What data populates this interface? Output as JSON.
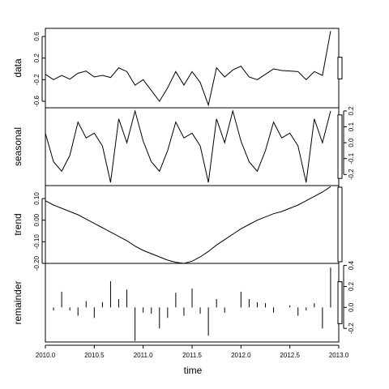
{
  "chart_data": {
    "type": "line",
    "xlabel": "time",
    "x_ticks": [
      2010.0,
      2010.5,
      2011.0,
      2011.5,
      2012.0,
      2012.5,
      2013.0
    ],
    "x_tick_labels": [
      "2010.0",
      "2010.5",
      "2011.0",
      "2011.5",
      "2012.0",
      "2012.5",
      "2013.0"
    ],
    "xlim": [
      2010.0,
      2013.0
    ],
    "time": [
      2010.0,
      2010.0833,
      2010.1667,
      2010.25,
      2010.3333,
      2010.4167,
      2010.5,
      2010.5833,
      2010.6667,
      2010.75,
      2010.8333,
      2010.9167,
      2011.0,
      2011.0833,
      2011.1667,
      2011.25,
      2011.3333,
      2011.4167,
      2011.5,
      2011.5833,
      2011.6667,
      2011.75,
      2011.8333,
      2011.9167,
      2012.0,
      2012.0833,
      2012.1667,
      2012.25,
      2012.3333,
      2012.4167,
      2012.5,
      2012.5833,
      2012.6667,
      2012.75,
      2012.8333,
      2012.9167
    ],
    "panels": [
      {
        "name": "data",
        "ylabel": "data",
        "ylim": [
          -0.72,
          0.75
        ],
        "y_ticks": [
          -0.6,
          -0.2,
          0.2,
          0.6
        ],
        "y_tick_labels": [
          "-0.6",
          "-0.2",
          "0.2",
          "0.6"
        ],
        "style": "line",
        "values": [
          -0.1,
          -0.2,
          -0.12,
          -0.19,
          -0.08,
          -0.04,
          -0.15,
          -0.12,
          -0.16,
          0.02,
          -0.05,
          -0.3,
          -0.2,
          -0.4,
          -0.6,
          -0.35,
          -0.05,
          -0.3,
          -0.05,
          -0.25,
          -0.67,
          0.02,
          -0.15,
          -0.02,
          0.05,
          -0.15,
          -0.2,
          -0.1,
          0.0,
          -0.03,
          -0.04,
          -0.05,
          -0.2,
          -0.05,
          -0.12,
          0.7
        ]
      },
      {
        "name": "seasonal",
        "ylabel": "seasonal",
        "ylim": [
          -0.27,
          0.22
        ],
        "y_ticks": [
          -0.2,
          -0.1,
          0.0,
          0.1,
          0.2
        ],
        "y_tick_labels": [
          "-0.2",
          "-0.1",
          "0.0",
          "0.1",
          "0.2"
        ],
        "style": "line",
        "values": [
          0.06,
          -0.12,
          -0.18,
          -0.08,
          0.13,
          0.03,
          0.06,
          -0.02,
          -0.25,
          0.15,
          0.0,
          0.2,
          0.01,
          -0.12,
          -0.18,
          -0.05,
          0.13,
          0.03,
          0.06,
          -0.02,
          -0.25,
          0.15,
          0.0,
          0.2,
          0.01,
          -0.12,
          -0.18,
          -0.05,
          0.13,
          0.03,
          0.06,
          -0.02,
          -0.25,
          0.15,
          0.0,
          0.2
        ]
      },
      {
        "name": "trend",
        "ylabel": "trend",
        "ylim": [
          -0.2,
          0.16
        ],
        "y_ticks": [
          -0.2,
          -0.1,
          0.0,
          0.1
        ],
        "y_tick_labels": [
          "-0.20",
          "-0.10",
          "0.00",
          "0.10"
        ],
        "style": "line",
        "values": [
          0.09,
          0.07,
          0.055,
          0.04,
          0.025,
          0.005,
          -0.015,
          -0.035,
          -0.055,
          -0.075,
          -0.095,
          -0.12,
          -0.14,
          -0.155,
          -0.17,
          -0.185,
          -0.195,
          -0.2,
          -0.19,
          -0.17,
          -0.145,
          -0.115,
          -0.09,
          -0.065,
          -0.04,
          -0.02,
          0.0,
          0.015,
          0.03,
          0.04,
          0.055,
          0.07,
          0.09,
          0.11,
          0.13,
          0.155
        ]
      },
      {
        "name": "remainder",
        "ylabel": "remainder",
        "ylim": [
          -0.33,
          0.42
        ],
        "y_ticks": [
          -0.2,
          0.0,
          0.2,
          0.4
        ],
        "y_tick_labels": [
          "-0.2",
          "0.0",
          "0.2",
          "0.4"
        ],
        "style": "spikes",
        "values": [
          -0.1,
          -0.03,
          0.15,
          -0.03,
          -0.08,
          0.06,
          -0.1,
          0.05,
          0.25,
          0.08,
          0.17,
          -0.32,
          -0.05,
          -0.06,
          -0.2,
          -0.1,
          0.14,
          -0.08,
          0.18,
          -0.06,
          -0.27,
          0.08,
          -0.05,
          0.0,
          0.15,
          0.08,
          0.05,
          0.04,
          -0.05,
          0.0,
          0.02,
          -0.08,
          -0.03,
          0.04,
          -0.2,
          0.38
        ]
      }
    ]
  }
}
